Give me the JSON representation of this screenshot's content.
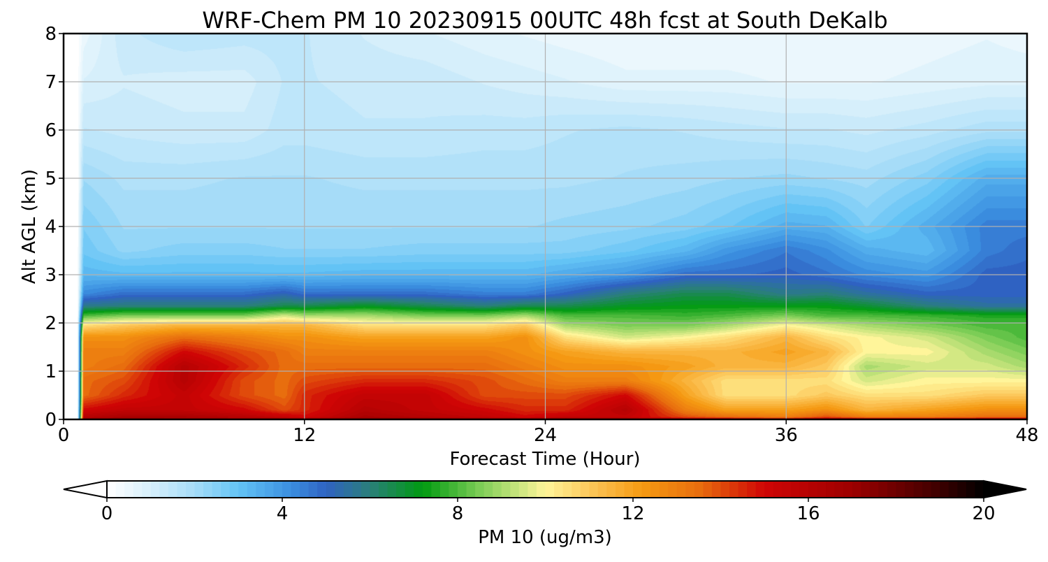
{
  "chart_data": {
    "type": "heatmap",
    "title": "WRF-Chem PM 10  20230915 00UTC 48h fcst at South DeKalb",
    "xlabel": "Forecast Time (Hour)",
    "ylabel": "Alt AGL (km)",
    "xlim": [
      0,
      48
    ],
    "ylim": [
      0,
      8
    ],
    "xticks": [
      0,
      12,
      24,
      36,
      48
    ],
    "yticks": [
      0,
      1,
      2,
      3,
      4,
      5,
      6,
      7,
      8
    ],
    "grid": true,
    "colorbar": {
      "label": "PM 10  (ug/m3)",
      "min": 0,
      "max": 20,
      "ticks": [
        0,
        4,
        8,
        12,
        16,
        20
      ],
      "extend": "both",
      "placement": "bottom",
      "colors": [
        {
          "v": 0,
          "c": "#ffffff"
        },
        {
          "v": 1,
          "c": "#d6effb"
        },
        {
          "v": 2,
          "c": "#a6dcf8"
        },
        {
          "v": 3,
          "c": "#63c3f5"
        },
        {
          "v": 4.2,
          "c": "#3b8fe0"
        },
        {
          "v": 5,
          "c": "#2f62c2"
        },
        {
          "v": 6,
          "c": "#2a7f7a"
        },
        {
          "v": 7.2,
          "c": "#009a11"
        },
        {
          "v": 8.5,
          "c": "#7ccd56"
        },
        {
          "v": 10,
          "c": "#fff59a"
        },
        {
          "v": 11.2,
          "c": "#fbbf4f"
        },
        {
          "v": 12.2,
          "c": "#f59a12"
        },
        {
          "v": 13.5,
          "c": "#e86e0e"
        },
        {
          "v": 15,
          "c": "#cf0505"
        },
        {
          "v": 17,
          "c": "#9d0000"
        },
        {
          "v": 19,
          "c": "#3c0000"
        },
        {
          "v": 20,
          "c": "#000000"
        }
      ]
    },
    "x_hours": [
      0,
      0.7,
      1,
      3,
      6,
      9,
      11,
      12,
      15,
      18,
      21,
      23,
      25,
      28,
      31,
      33,
      36,
      38,
      40,
      43,
      46,
      48
    ],
    "y_km": [
      0,
      0.05,
      0.2,
      0.5,
      0.8,
      1.1,
      1.4,
      1.7,
      1.95,
      2.15,
      2.35,
      2.6,
      3.0,
      3.5,
      4.0,
      5.0,
      6.0,
      7.0,
      8.0
    ],
    "pm10_ugm3_by_altitude": [
      [
        0,
        0,
        17,
        17.5,
        17,
        17,
        17,
        17,
        17.5,
        17.5,
        17,
        17,
        17.5,
        17,
        16,
        16,
        15.5,
        16.5,
        16,
        16,
        16,
        16
      ],
      [
        0,
        0,
        16,
        16.5,
        16.5,
        16,
        15.5,
        15,
        16.5,
        16,
        15.5,
        15,
        15.5,
        15.5,
        14,
        13.5,
        13,
        14,
        13,
        13,
        13.5,
        13.5
      ],
      [
        0,
        0,
        15,
        15.5,
        15.5,
        15,
        14,
        14.5,
        16,
        15.5,
        15,
        14.5,
        14.5,
        16,
        13,
        12,
        12,
        12.5,
        11.5,
        12,
        12.5,
        12.5
      ],
      [
        0,
        0,
        13.5,
        14.5,
        15.5,
        14,
        13.5,
        14.5,
        15.5,
        15.5,
        14,
        14,
        14,
        15,
        12,
        10.5,
        10.5,
        11,
        10.5,
        10.5,
        11,
        11
      ],
      [
        0,
        0,
        13.5,
        14,
        16,
        14,
        13.5,
        14,
        14.5,
        14.5,
        14,
        13.5,
        13,
        13,
        11.5,
        10.5,
        10.5,
        10.5,
        9.5,
        10,
        10,
        10
      ],
      [
        0,
        0,
        13,
        13.5,
        16,
        14.5,
        13.5,
        13.5,
        13.5,
        13.5,
        13.5,
        13,
        12.5,
        12.5,
        12,
        11.5,
        11.5,
        11,
        9,
        9.5,
        9.5,
        9
      ],
      [
        0,
        0,
        13,
        13,
        15,
        14,
        13.5,
        13,
        13,
        13,
        13,
        12.5,
        12,
        11.5,
        11.5,
        11.5,
        12,
        11.5,
        10,
        10,
        9,
        8.5
      ],
      [
        0,
        0,
        12.5,
        12.5,
        13.5,
        13,
        12.5,
        12.5,
        12,
        12,
        12,
        12.5,
        10.5,
        9.5,
        10,
        10.5,
        11.5,
        10.5,
        10,
        9.5,
        8.5,
        8
      ],
      [
        0,
        0,
        10.5,
        11,
        11.5,
        11.5,
        11.5,
        11.5,
        10.5,
        10.5,
        10.5,
        11,
        9,
        8.5,
        8.5,
        9,
        10,
        9.5,
        9,
        8.5,
        8,
        8
      ],
      [
        0,
        0,
        8,
        8.5,
        8.5,
        8.5,
        9.5,
        9,
        9,
        8.5,
        8.5,
        9,
        8,
        8,
        7.8,
        8,
        8.5,
        8,
        8,
        7.8,
        7.5,
        7.5
      ],
      [
        0,
        0,
        5.8,
        6,
        6,
        6,
        6.5,
        6.5,
        7,
        6.5,
        6,
        6.5,
        6.5,
        7,
        7.2,
        7.2,
        7.2,
        7.2,
        6.8,
        6,
        5.5,
        5.5
      ],
      [
        0,
        0,
        4.3,
        4.8,
        4.8,
        4.8,
        5.2,
        4.8,
        4.8,
        4.8,
        4.5,
        4.5,
        5,
        6,
        6.5,
        6.5,
        5.8,
        6,
        5.5,
        5,
        5,
        5
      ],
      [
        0,
        0,
        3.3,
        3.2,
        3.2,
        3.2,
        3.2,
        3.2,
        3.3,
        3.3,
        3.3,
        3.3,
        3.6,
        4,
        4.8,
        4.8,
        5,
        4.7,
        4.3,
        4,
        5,
        5
      ],
      [
        0,
        0,
        2.8,
        2.3,
        2.5,
        2.5,
        2.4,
        2.4,
        2.4,
        2.5,
        2.5,
        2.5,
        2.5,
        2.8,
        3.3,
        4,
        4.6,
        4.2,
        3.5,
        3.2,
        4.5,
        4.8
      ],
      [
        0,
        0,
        2.6,
        2.1,
        2.1,
        2.1,
        2.1,
        2.1,
        2.1,
        2.1,
        2.1,
        2.1,
        2.2,
        2.3,
        2.5,
        2.8,
        3.5,
        3.4,
        2.6,
        3.5,
        4.5,
        4.5
      ],
      [
        0,
        0,
        2.1,
        1.8,
        1.8,
        1.9,
        1.9,
        1.9,
        1.8,
        1.8,
        1.8,
        1.8,
        1.8,
        1.9,
        2,
        2.1,
        2.2,
        2.1,
        2,
        2.5,
        3.5,
        3.5
      ],
      [
        0,
        0,
        1.4,
        1.3,
        1.2,
        1.2,
        1.5,
        1.5,
        1.4,
        1.4,
        1.5,
        1.5,
        1.6,
        1.7,
        1.6,
        1.5,
        1.4,
        1.4,
        1.3,
        1.5,
        1.8,
        1.8
      ],
      [
        0,
        0,
        0.9,
        1.1,
        1,
        1,
        1.4,
        1.4,
        1.3,
        1.3,
        1.1,
        1,
        0.9,
        0.7,
        0.7,
        0.7,
        0.6,
        0.6,
        0.6,
        0.7,
        0.8,
        0.8
      ],
      [
        0,
        0,
        0.5,
        1.3,
        1.6,
        1.5,
        1.5,
        1.4,
        1.1,
        0.9,
        0.7,
        0.6,
        0.5,
        0.4,
        0.4,
        0.4,
        0.4,
        0.4,
        0.4,
        0.5,
        0.6,
        0.5
      ]
    ]
  }
}
